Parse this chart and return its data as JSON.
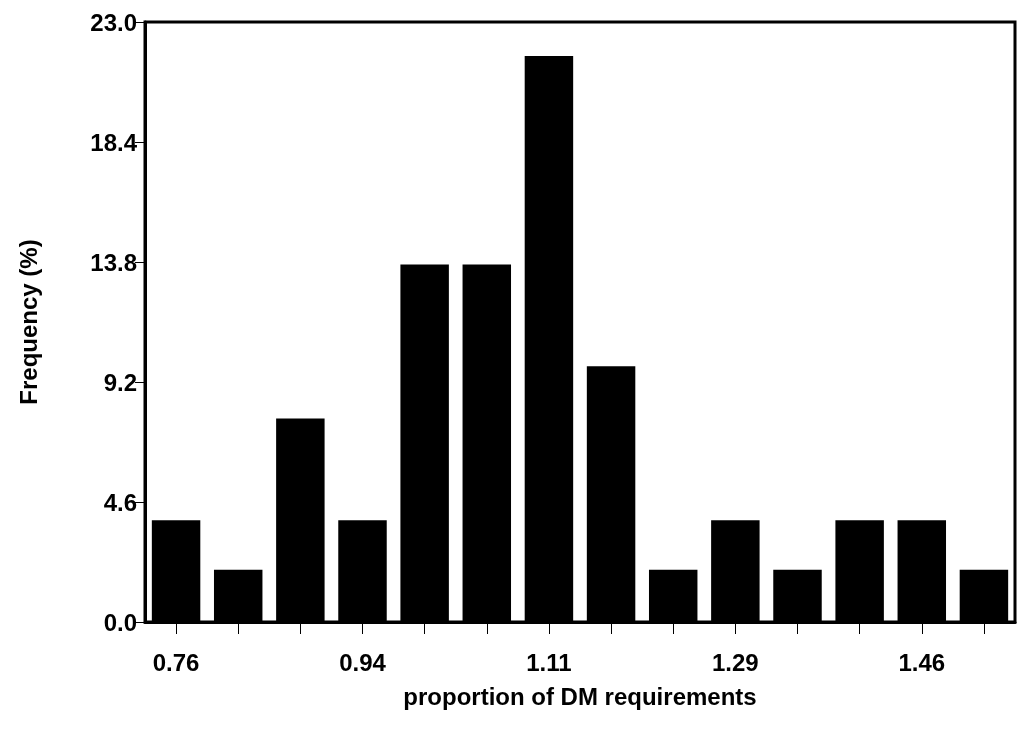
{
  "chart_data": {
    "type": "bar",
    "xlabel": "proportion of DM requirements",
    "ylabel": "Frequency (%)",
    "categories": [
      "0.76",
      null,
      null,
      "0.94",
      null,
      null,
      "1.11",
      null,
      null,
      "1.29",
      null,
      null,
      "1.46",
      null
    ],
    "values": [
      3.9,
      2.0,
      7.8,
      3.9,
      13.7,
      13.7,
      21.7,
      9.8,
      2.0,
      3.9,
      2.0,
      3.9,
      3.9,
      2.0
    ],
    "color": "#000000",
    "ylim": [
      0,
      23
    ],
    "yticks": [
      {
        "value": 0,
        "label": "0.0"
      },
      {
        "value": 4.6,
        "label": "4.6"
      },
      {
        "value": 9.2,
        "label": "9.2"
      },
      {
        "value": 13.8,
        "label": "13.8"
      },
      {
        "value": 18.4,
        "label": "18.4"
      },
      {
        "value": 23,
        "label": "23.0"
      }
    ],
    "grid": false
  }
}
